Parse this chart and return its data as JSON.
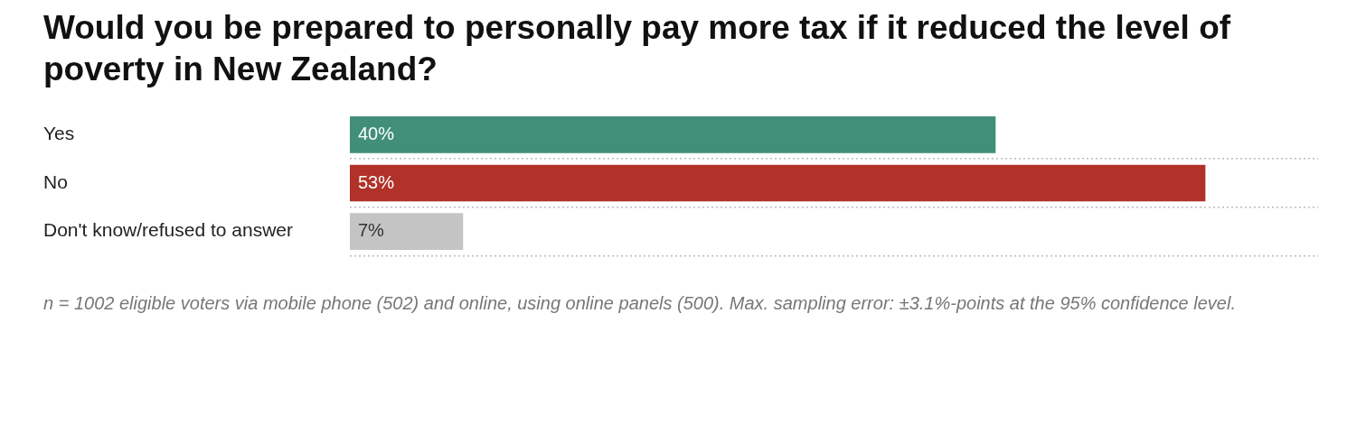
{
  "chart_data": {
    "type": "bar",
    "orientation": "horizontal",
    "title": "Would you be prepared to personally pay more tax if it reduced the level of poverty in New Zealand?",
    "categories": [
      "Yes",
      "No",
      "Don't know/refused to answer"
    ],
    "values": [
      40,
      53,
      7
    ],
    "colors": [
      "#428f79",
      "#b13228",
      "#c4c4c4"
    ],
    "value_labels": [
      "40%",
      "53%",
      "7%"
    ],
    "grid": "y",
    "annotations": [
      "n = 1002 eligible voters via mobile phone (502) and online, using online panels (500). Max. sampling error: ±3.1%-points at the 95% confidence level."
    ]
  }
}
